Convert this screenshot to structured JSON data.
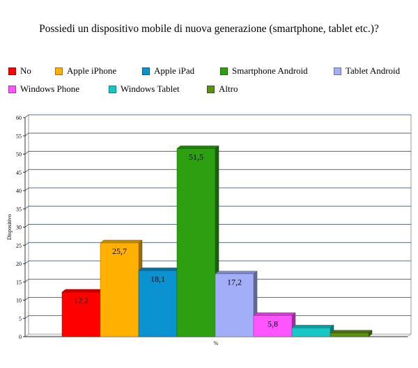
{
  "chart_data": {
    "type": "bar",
    "title": "Possiedi un dispositivo mobile di nuova generazione (smartphone, tablet etc.)?",
    "xlabel": "%",
    "ylabel": "Dispositivo",
    "ylim": [
      0,
      60
    ],
    "yticks": [
      "0",
      "5",
      "10",
      "15",
      "20",
      "25",
      "30",
      "35",
      "40",
      "45",
      "50",
      "55",
      "60"
    ],
    "grid": true,
    "legend_position": "top",
    "series": [
      {
        "name": "No",
        "value": 12.2,
        "label": "12,2",
        "color": "#ff0000"
      },
      {
        "name": "Apple iPhone",
        "value": 25.7,
        "label": "25,7",
        "color": "#ffb000"
      },
      {
        "name": "Apple iPad",
        "value": 18.1,
        "label": "18,1",
        "color": "#0b92d0"
      },
      {
        "name": "Smartphone Android",
        "value": 51.5,
        "label": "51,5",
        "color": "#2e9f10"
      },
      {
        "name": "Tablet Android",
        "value": 17.2,
        "label": "17,2",
        "color": "#a2aef7"
      },
      {
        "name": "Windows Phone",
        "value": 5.8,
        "label": "5,8",
        "color": "#ff55ff"
      },
      {
        "name": "Windows Tablet",
        "value": 2.4,
        "label": "",
        "color": "#18c6c6"
      },
      {
        "name": "Altro",
        "value": 1.0,
        "label": "",
        "color": "#5f8f10"
      }
    ]
  }
}
